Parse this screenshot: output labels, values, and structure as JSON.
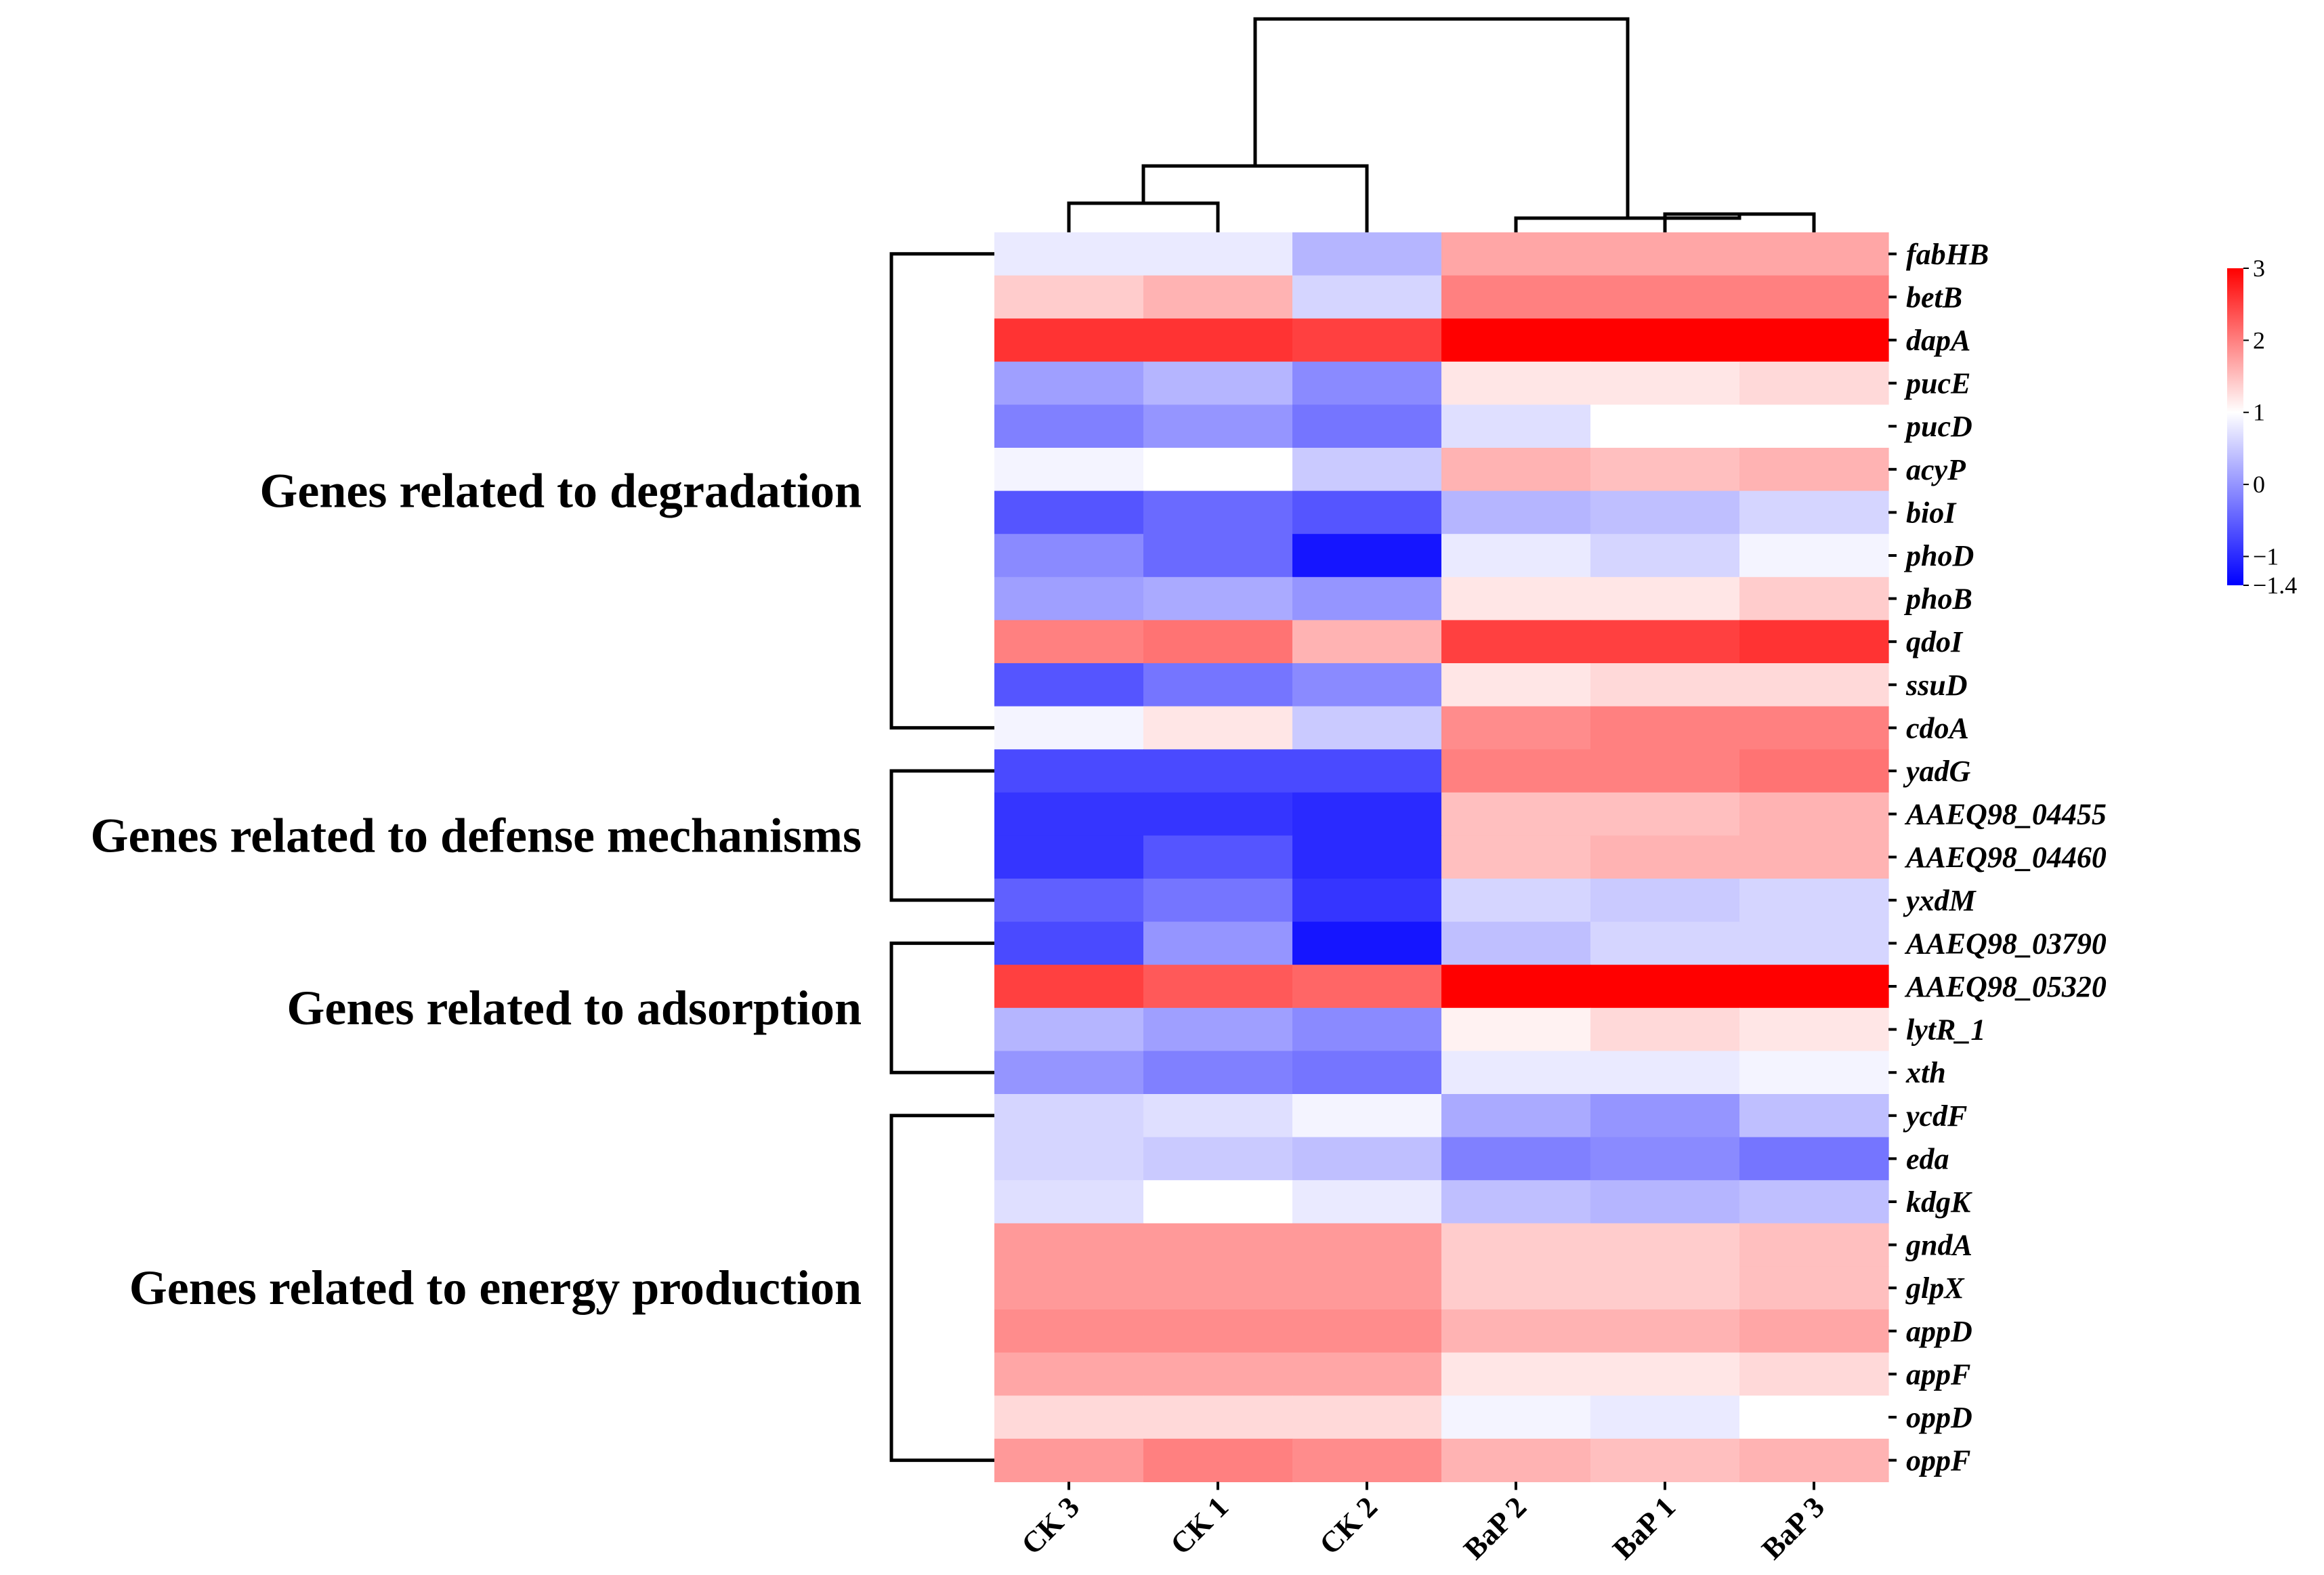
{
  "chart_data": {
    "type": "heatmap",
    "title": "",
    "columns": [
      "CK 3",
      "CK 1",
      "CK 2",
      "BaP 2",
      "BaP 1",
      "BaP 3"
    ],
    "rows": [
      "fabHB",
      "betB",
      "dapA",
      "pucE",
      "pucD",
      "acyP",
      "bioI",
      "phoD",
      "phoB",
      "qdoI",
      "ssuD",
      "cdoA",
      "yadG",
      "AAEQ98_04455",
      "AAEQ98_04460",
      "yxdM",
      "AAEQ98_03790",
      "AAEQ98_05320",
      "lytR_1",
      "xth",
      "ycdF",
      "eda",
      "kdgK",
      "gndA",
      "glpX",
      "appD",
      "appF",
      "oppD",
      "oppF"
    ],
    "values": [
      [
        0.8,
        0.8,
        0.3,
        1.7,
        1.7,
        1.7
      ],
      [
        1.4,
        1.6,
        0.6,
        2.0,
        2.0,
        2.0
      ],
      [
        2.6,
        2.6,
        2.5,
        3.0,
        3.0,
        3.0
      ],
      [
        0.1,
        0.3,
        -0.1,
        1.2,
        1.2,
        1.3
      ],
      [
        -0.2,
        0.0,
        -0.3,
        0.7,
        1.0,
        1.0
      ],
      [
        0.9,
        1.0,
        0.5,
        1.6,
        1.5,
        1.6
      ],
      [
        -0.6,
        -0.4,
        -0.6,
        0.3,
        0.4,
        0.6
      ],
      [
        -0.1,
        -0.4,
        -1.2,
        0.8,
        0.6,
        0.9
      ],
      [
        0.1,
        0.2,
        0.0,
        1.2,
        1.2,
        1.4
      ],
      [
        2.0,
        2.1,
        1.6,
        2.5,
        2.5,
        2.6
      ],
      [
        -0.6,
        -0.3,
        -0.1,
        1.2,
        1.3,
        1.3
      ],
      [
        0.9,
        1.2,
        0.5,
        1.9,
        2.0,
        2.0
      ],
      [
        -0.7,
        -0.7,
        -0.7,
        2.0,
        2.0,
        2.1
      ],
      [
        -0.9,
        -0.9,
        -1.0,
        1.5,
        1.5,
        1.6
      ],
      [
        -0.9,
        -0.6,
        -1.0,
        1.5,
        1.6,
        1.6
      ],
      [
        -0.5,
        -0.3,
        -0.9,
        0.6,
        0.5,
        0.6
      ],
      [
        -0.7,
        0.0,
        -1.2,
        0.4,
        0.6,
        0.6
      ],
      [
        2.5,
        2.3,
        2.2,
        3.0,
        3.0,
        3.0
      ],
      [
        0.3,
        0.1,
        -0.1,
        1.1,
        1.3,
        1.2
      ],
      [
        0.0,
        -0.2,
        -0.3,
        0.8,
        0.8,
        0.9
      ],
      [
        0.6,
        0.7,
        0.9,
        0.2,
        0.0,
        0.4
      ],
      [
        0.6,
        0.5,
        0.4,
        -0.2,
        -0.1,
        -0.3
      ],
      [
        0.7,
        1.0,
        0.8,
        0.4,
        0.3,
        0.4
      ],
      [
        1.8,
        1.8,
        1.8,
        1.4,
        1.4,
        1.5
      ],
      [
        1.8,
        1.8,
        1.8,
        1.4,
        1.4,
        1.5
      ],
      [
        1.9,
        1.9,
        1.9,
        1.6,
        1.6,
        1.7
      ],
      [
        1.7,
        1.7,
        1.7,
        1.2,
        1.2,
        1.3
      ],
      [
        1.3,
        1.3,
        1.3,
        0.9,
        0.8,
        1.0
      ],
      [
        1.8,
        2.0,
        1.9,
        1.6,
        1.5,
        1.6
      ]
    ],
    "color_scale": {
      "min": -1.4,
      "max": 3,
      "mid": 1,
      "low_color": "#0000ff",
      "mid_color": "#ffffff",
      "high_color": "#ff0000",
      "tick_labels": [
        "3",
        "2",
        "1",
        "0",
        "−1",
        "−1.4"
      ],
      "tick_values": [
        3,
        2,
        1,
        0,
        -1,
        -1.4
      ]
    },
    "row_groups": [
      {
        "label": "Genes related to degradation",
        "start": 0,
        "end": 11
      },
      {
        "label": "Genes related to defense mechanisms",
        "start": 12,
        "end": 15
      },
      {
        "label": "Genes related to adsorption",
        "start": 16,
        "end": 19
      },
      {
        "label": "Genes related to energy production",
        "start": 20,
        "end": 28
      }
    ],
    "column_dendrogram": "((CK 3, CK 1), CK 2), (BaP 2, (BaP 1, BaP 3))"
  }
}
